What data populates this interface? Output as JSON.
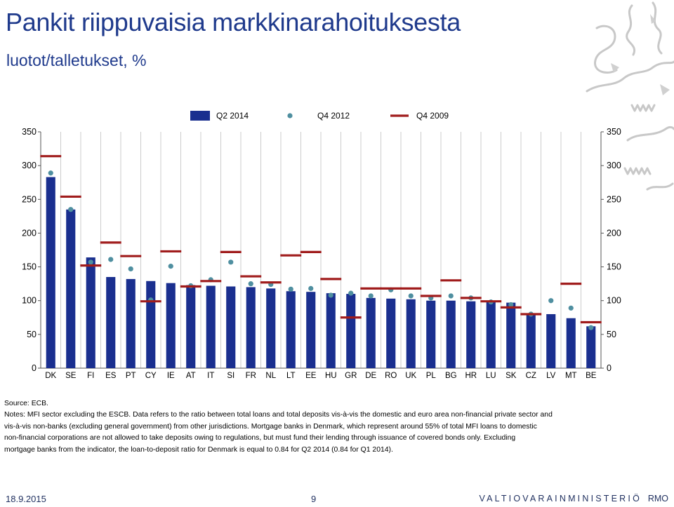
{
  "slide": {
    "title": "Pankit riippuvaisia markkinarahoituksesta",
    "subtitle": "luotot/talletukset, %"
  },
  "notes": {
    "source": "Source: ECB.",
    "text_lines": [
      "Notes: MFI sector excluding the ESCB. Data refers to the ratio between total loans and total deposits vis-à-vis the domestic and euro area non-financial private sector and",
      "vis-à-vis non-banks (excluding general government) from other jurisdictions. Mortgage banks in Denmark, which represent around 55% of total MFI loans to domestic",
      "non-financial corporations are not allowed to take deposits owing to regulations, but must fund their lending through issuance of covered bonds only. Excluding",
      "mortgage banks from the indicator, the loan-to-deposit ratio for Denmark is equal to 0.84 for Q2 2014 (0.84 for Q1 2014)."
    ]
  },
  "footer": {
    "date": "18.9.2015",
    "page": "9",
    "org": "VALTIOVARAINMINISTERIÖ",
    "suffix": "RMO"
  },
  "colors": {
    "title": "#1f3a8c",
    "bar": "#1a2f8f",
    "dot": "#4f8fa0",
    "dash": "#a01c1c",
    "grid": "#cccccc",
    "logo": "#c8c8c8"
  },
  "logo": {
    "icon": "lion-crest-icon"
  },
  "chart_data": {
    "type": "bar",
    "title": "",
    "xlabel": "",
    "ylabel": "",
    "ylim": [
      0,
      350
    ],
    "yticks": [
      0,
      50,
      100,
      150,
      200,
      250,
      300,
      350
    ],
    "y_axis_both_sides": true,
    "grid": "vertical",
    "legend_position": "top",
    "categories": [
      "DK",
      "SE",
      "FI",
      "ES",
      "PT",
      "CY",
      "IE",
      "AT",
      "IT",
      "SI",
      "FR",
      "NL",
      "LT",
      "EE",
      "HU",
      "GR",
      "DE",
      "RO",
      "UK",
      "PL",
      "BG",
      "HR",
      "LU",
      "SK",
      "CZ",
      "LV",
      "MT",
      "BE"
    ],
    "series": [
      {
        "name": "Q2 2014",
        "mark": "bar",
        "values": [
          283,
          235,
          164,
          135,
          132,
          129,
          126,
          123,
          122,
          121,
          120,
          118,
          114,
          113,
          111,
          110,
          104,
          103,
          102,
          100,
          100,
          99,
          98,
          97,
          80,
          80,
          74,
          62
        ]
      },
      {
        "name": "Q4 2012",
        "mark": "dot",
        "values": [
          289,
          235,
          157,
          161,
          147,
          101,
          151,
          122,
          131,
          157,
          125,
          124,
          117,
          118,
          108,
          111,
          107,
          116,
          107,
          104,
          107,
          104,
          98,
          94,
          80,
          100,
          89,
          60
        ]
      },
      {
        "name": "Q4 2009",
        "mark": "dash",
        "values": [
          314,
          254,
          152,
          186,
          166,
          99,
          173,
          121,
          129,
          172,
          136,
          127,
          167,
          172,
          132,
          75,
          118,
          118,
          118,
          107,
          130,
          104,
          99,
          90,
          80,
          null,
          125,
          68
        ]
      }
    ]
  }
}
